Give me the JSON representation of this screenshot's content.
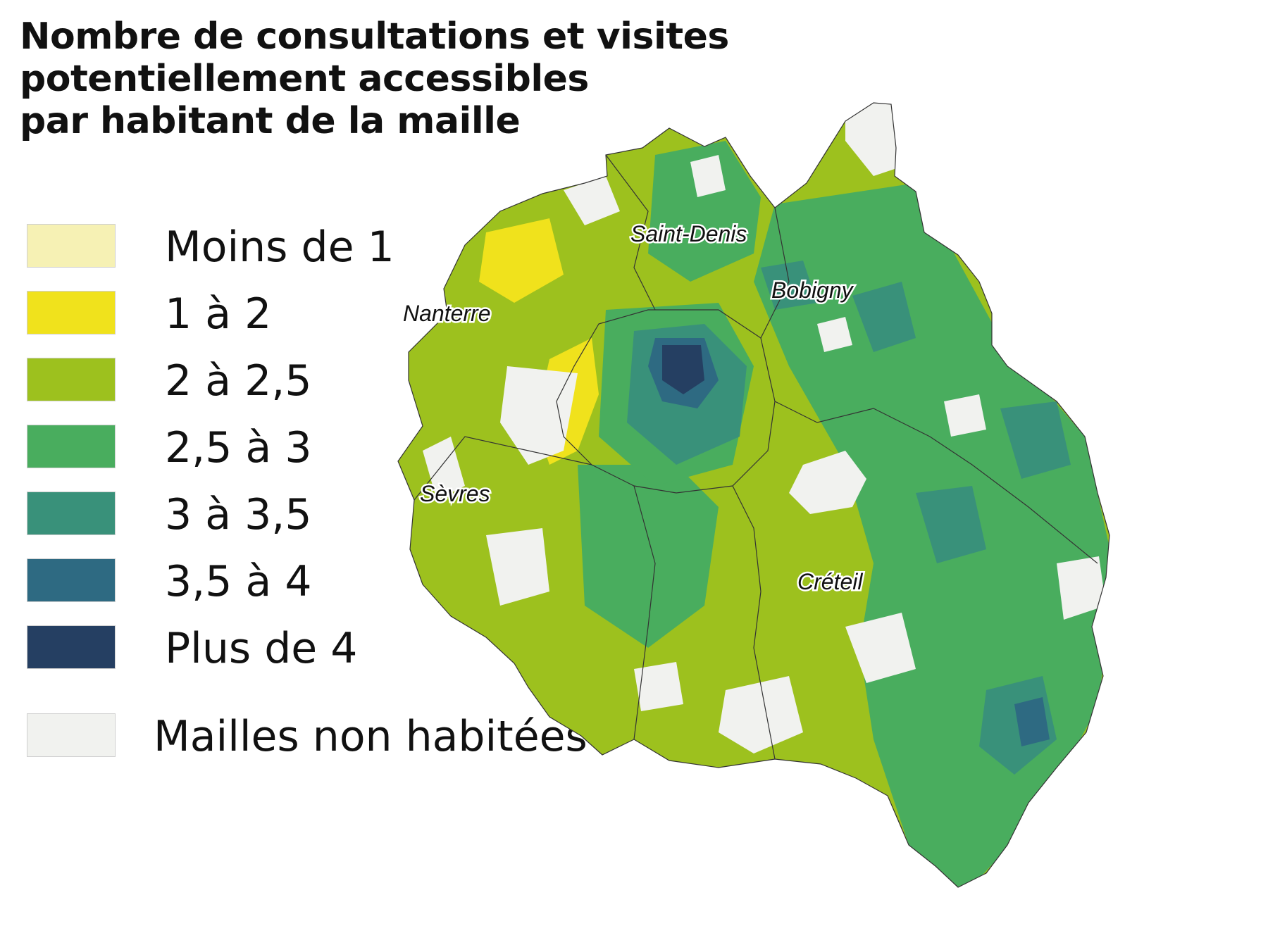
{
  "title": {
    "line1": "Nombre de consultations et visites",
    "line2": "potentiellement accessibles",
    "line3": "par habitant de la maille"
  },
  "legend": [
    {
      "label": "Moins de 1",
      "color": "#f6f1b4"
    },
    {
      "label": "1 à 2",
      "color": "#f0e21c"
    },
    {
      "label": "2 à 2,5",
      "color": "#9dc11e"
    },
    {
      "label": "2,5 à 3",
      "color": "#49ad5e"
    },
    {
      "label": "3 à 3,5",
      "color": "#39917a"
    },
    {
      "label": "3,5 à 4",
      "color": "#2e6a82"
    },
    {
      "label": "Plus de 4",
      "color": "#253f62"
    },
    {
      "label": "Mailles non habitées",
      "color": "#f1f2ef"
    }
  ],
  "map": {
    "cities": {
      "saint_denis": "Saint-Denis",
      "bobigny": "Bobigny",
      "nanterre": "Nanterre",
      "sevres": "Sèvres",
      "creteil": "Créteil"
    }
  }
}
